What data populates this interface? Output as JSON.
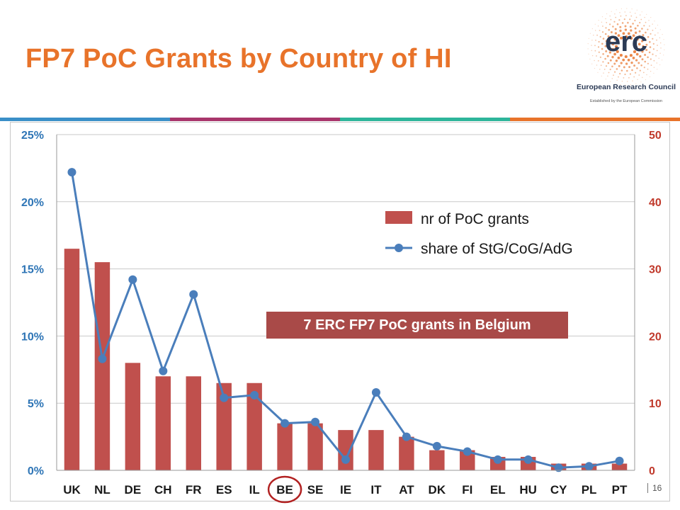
{
  "slide": {
    "title": "FP7 PoC Grants by Country of HI",
    "page_number": "16",
    "callout": "7 ERC FP7 PoC grants in Belgium"
  },
  "logo": {
    "wordmark": "erc",
    "name": "European Research Council",
    "subtitle": "Established by the European Commission"
  },
  "colors": {
    "title": "#e8732a",
    "bars": "#c0504d",
    "line": "#4a7ebb",
    "left_axis": "#2e75b6",
    "right_axis": "#c0392b",
    "callout_bg": "#a94a48",
    "highlight_circle": "#b22222"
  },
  "chart_data": {
    "type": "bar",
    "categories": [
      "UK",
      "NL",
      "DE",
      "CH",
      "FR",
      "ES",
      "IL",
      "BE",
      "SE",
      "IE",
      "IT",
      "AT",
      "DK",
      "FI",
      "EL",
      "HU",
      "CY",
      "PL",
      "PT"
    ],
    "highlight_category": "BE",
    "series": [
      {
        "name": "nr of PoC grants",
        "type": "bar",
        "axis": "right",
        "values": [
          33,
          31,
          16,
          14,
          14,
          13,
          13,
          7,
          7,
          6,
          6,
          5,
          3,
          3,
          2,
          2,
          1,
          1,
          1
        ]
      },
      {
        "name": "share of StG/CoG/AdG",
        "type": "line",
        "axis": "left",
        "values": [
          22.2,
          8.3,
          14.2,
          7.4,
          13.1,
          5.4,
          5.6,
          3.5,
          3.6,
          0.8,
          5.8,
          2.5,
          1.8,
          1.4,
          0.8,
          0.8,
          0.2,
          0.3,
          0.7
        ]
      }
    ],
    "left_axis": {
      "ticks": [
        "0%",
        "5%",
        "10%",
        "15%",
        "20%",
        "25%"
      ],
      "ylim": [
        0,
        25
      ]
    },
    "right_axis": {
      "ticks": [
        "0",
        "10",
        "20",
        "30",
        "40",
        "50"
      ],
      "ylim": [
        0,
        50
      ]
    },
    "grid": true,
    "legend_position": "upper-right"
  }
}
